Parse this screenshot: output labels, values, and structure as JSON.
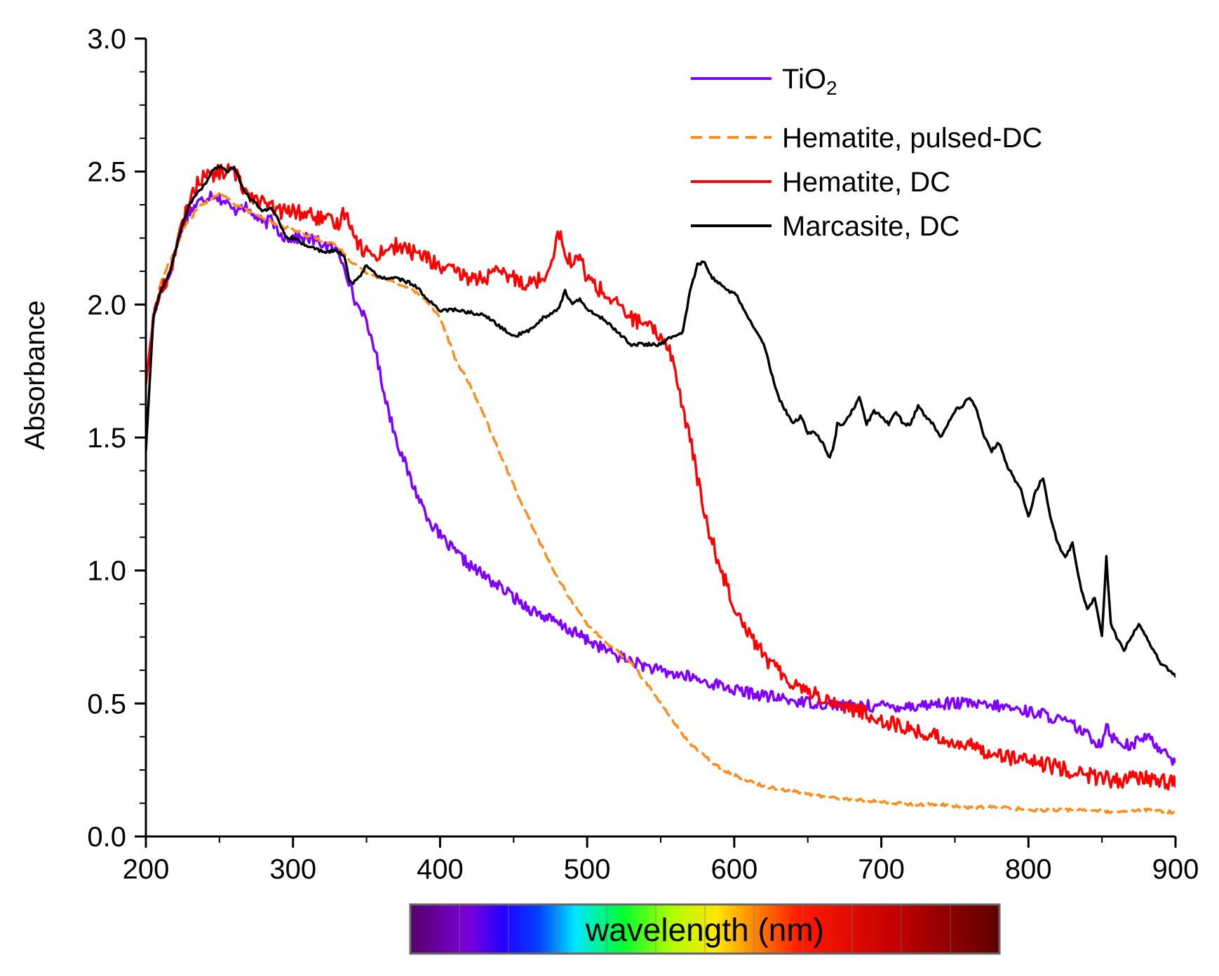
{
  "chart_data": {
    "type": "line",
    "title": "",
    "xlabel": "wavelength (nm)",
    "ylabel": "Absorbance",
    "xlim": [
      200,
      900
    ],
    "ylim": [
      0.0,
      3.0
    ],
    "xticks": [
      "200",
      "300",
      "400",
      "500",
      "600",
      "700",
      "800",
      "900"
    ],
    "yticks": [
      "0.0",
      "0.5",
      "1.0",
      "1.5",
      "2.0",
      "2.5",
      "3.0"
    ],
    "grid": false,
    "legend_position": "top-right",
    "series": [
      {
        "name": "TiO",
        "name_sub": "2",
        "color": "#8000ff",
        "dash": "solid",
        "x": [
          200,
          205,
          210,
          215,
          220,
          225,
          230,
          235,
          240,
          245,
          250,
          255,
          260,
          265,
          270,
          275,
          280,
          285,
          290,
          295,
          300,
          310,
          320,
          330,
          335,
          340,
          343,
          347,
          350,
          355,
          360,
          365,
          370,
          375,
          380,
          385,
          390,
          395,
          400,
          410,
          420,
          430,
          440,
          450,
          460,
          470,
          480,
          490,
          500,
          510,
          520,
          530,
          540,
          550,
          560,
          570,
          580,
          590,
          600,
          620,
          640,
          660,
          680,
          700,
          720,
          740,
          760,
          770,
          780,
          790,
          800,
          810,
          820,
          830,
          835,
          840,
          845,
          850,
          853,
          856,
          860,
          865,
          870,
          875,
          880,
          885,
          890,
          895,
          900
        ],
        "y": [
          1.7,
          1.95,
          2.05,
          2.1,
          2.2,
          2.3,
          2.35,
          2.38,
          2.4,
          2.42,
          2.4,
          2.38,
          2.35,
          2.38,
          2.35,
          2.33,
          2.3,
          2.32,
          2.28,
          2.25,
          2.25,
          2.25,
          2.23,
          2.2,
          2.15,
          2.05,
          2.0,
          1.98,
          1.92,
          1.85,
          1.72,
          1.6,
          1.5,
          1.42,
          1.34,
          1.28,
          1.22,
          1.17,
          1.13,
          1.07,
          1.02,
          0.98,
          0.94,
          0.9,
          0.86,
          0.83,
          0.8,
          0.77,
          0.74,
          0.71,
          0.68,
          0.66,
          0.64,
          0.62,
          0.61,
          0.6,
          0.58,
          0.57,
          0.55,
          0.53,
          0.51,
          0.5,
          0.49,
          0.49,
          0.49,
          0.5,
          0.5,
          0.49,
          0.49,
          0.48,
          0.47,
          0.46,
          0.44,
          0.42,
          0.4,
          0.38,
          0.36,
          0.35,
          0.43,
          0.38,
          0.36,
          0.35,
          0.34,
          0.36,
          0.38,
          0.35,
          0.33,
          0.32,
          0.27
        ]
      },
      {
        "name": "Hematite, pulsed-DC",
        "name_sub": "",
        "color": "#ff8c1a",
        "dash": "dashed",
        "x": [
          200,
          205,
          210,
          215,
          220,
          225,
          230,
          235,
          240,
          245,
          250,
          255,
          260,
          270,
          280,
          290,
          300,
          310,
          320,
          330,
          340,
          350,
          360,
          370,
          380,
          390,
          400,
          405,
          410,
          420,
          430,
          440,
          450,
          460,
          470,
          480,
          490,
          500,
          510,
          520,
          530,
          540,
          550,
          560,
          570,
          580,
          590,
          600,
          610,
          620,
          640,
          660,
          680,
          700,
          720,
          740,
          760,
          780,
          800,
          820,
          840,
          860,
          880,
          900
        ],
        "y": [
          1.7,
          1.95,
          2.08,
          2.15,
          2.2,
          2.28,
          2.32,
          2.36,
          2.38,
          2.4,
          2.42,
          2.4,
          2.38,
          2.35,
          2.32,
          2.3,
          2.28,
          2.26,
          2.24,
          2.22,
          2.16,
          2.12,
          2.1,
          2.08,
          2.06,
          2.02,
          1.95,
          1.88,
          1.8,
          1.7,
          1.58,
          1.45,
          1.32,
          1.2,
          1.08,
          0.97,
          0.88,
          0.8,
          0.74,
          0.7,
          0.65,
          0.58,
          0.5,
          0.42,
          0.35,
          0.3,
          0.26,
          0.23,
          0.21,
          0.19,
          0.17,
          0.15,
          0.14,
          0.13,
          0.12,
          0.12,
          0.11,
          0.11,
          0.1,
          0.1,
          0.1,
          0.09,
          0.1,
          0.09
        ]
      },
      {
        "name": "Hematite, DC",
        "name_sub": "",
        "color": "#ff0000",
        "dash": "solid",
        "x": [
          200,
          205,
          210,
          215,
          220,
          225,
          230,
          235,
          240,
          245,
          250,
          255,
          260,
          265,
          270,
          275,
          280,
          290,
          300,
          310,
          320,
          330,
          335,
          340,
          345,
          350,
          355,
          360,
          370,
          380,
          390,
          400,
          410,
          420,
          430,
          440,
          450,
          460,
          470,
          475,
          480,
          485,
          490,
          495,
          500,
          510,
          520,
          530,
          540,
          550,
          555,
          560,
          565,
          570,
          575,
          580,
          590,
          600,
          610,
          620,
          630,
          640,
          650,
          660,
          670,
          680,
          690,
          700,
          720,
          740,
          760,
          780,
          800,
          820,
          840,
          860,
          880,
          900
        ],
        "y": [
          1.7,
          1.95,
          2.05,
          2.1,
          2.2,
          2.3,
          2.4,
          2.45,
          2.5,
          2.48,
          2.5,
          2.5,
          2.5,
          2.45,
          2.42,
          2.4,
          2.38,
          2.35,
          2.35,
          2.34,
          2.32,
          2.3,
          2.35,
          2.3,
          2.22,
          2.2,
          2.18,
          2.2,
          2.22,
          2.2,
          2.18,
          2.14,
          2.12,
          2.1,
          2.1,
          2.12,
          2.1,
          2.08,
          2.1,
          2.15,
          2.28,
          2.2,
          2.15,
          2.18,
          2.1,
          2.05,
          2.0,
          1.95,
          1.92,
          1.88,
          1.85,
          1.75,
          1.6,
          1.5,
          1.35,
          1.2,
          1.02,
          0.87,
          0.77,
          0.68,
          0.62,
          0.58,
          0.55,
          0.52,
          0.5,
          0.48,
          0.46,
          0.44,
          0.4,
          0.37,
          0.34,
          0.31,
          0.28,
          0.26,
          0.23,
          0.21,
          0.22,
          0.2
        ]
      },
      {
        "name": "Marcasite, DC",
        "name_sub": "",
        "color": "#000000",
        "dash": "solid",
        "x": [
          200,
          205,
          210,
          215,
          220,
          225,
          230,
          235,
          240,
          245,
          250,
          255,
          260,
          265,
          270,
          275,
          280,
          285,
          290,
          295,
          300,
          310,
          320,
          330,
          335,
          338,
          340,
          345,
          350,
          355,
          360,
          370,
          380,
          385,
          390,
          395,
          400,
          410,
          420,
          430,
          440,
          450,
          460,
          470,
          480,
          485,
          490,
          495,
          500,
          510,
          520,
          530,
          540,
          550,
          555,
          560,
          565,
          570,
          575,
          580,
          585,
          590,
          595,
          600,
          610,
          620,
          625,
          630,
          635,
          640,
          645,
          650,
          655,
          660,
          665,
          668,
          670,
          675,
          680,
          685,
          690,
          695,
          700,
          705,
          710,
          715,
          720,
          725,
          730,
          735,
          740,
          745,
          750,
          755,
          760,
          765,
          770,
          775,
          780,
          785,
          790,
          795,
          800,
          805,
          810,
          815,
          820,
          825,
          830,
          835,
          840,
          845,
          850,
          853,
          856,
          860,
          865,
          870,
          875,
          880,
          885,
          890,
          895,
          900
        ],
        "y": [
          1.45,
          1.95,
          2.05,
          2.1,
          2.2,
          2.3,
          2.38,
          2.42,
          2.45,
          2.5,
          2.52,
          2.5,
          2.52,
          2.45,
          2.4,
          2.38,
          2.35,
          2.36,
          2.32,
          2.25,
          2.25,
          2.22,
          2.2,
          2.2,
          2.18,
          2.1,
          2.08,
          2.1,
          2.15,
          2.12,
          2.1,
          2.1,
          2.08,
          2.06,
          2.03,
          2.0,
          1.98,
          1.98,
          1.97,
          1.96,
          1.92,
          1.88,
          1.9,
          1.95,
          1.98,
          2.05,
          2.0,
          2.02,
          1.98,
          1.95,
          1.9,
          1.85,
          1.85,
          1.85,
          1.87,
          1.88,
          1.9,
          2.05,
          2.15,
          2.16,
          2.1,
          2.08,
          2.05,
          2.05,
          1.95,
          1.85,
          1.75,
          1.65,
          1.6,
          1.55,
          1.58,
          1.52,
          1.52,
          1.48,
          1.42,
          1.48,
          1.55,
          1.55,
          1.6,
          1.65,
          1.55,
          1.6,
          1.58,
          1.55,
          1.6,
          1.55,
          1.55,
          1.62,
          1.58,
          1.55,
          1.5,
          1.55,
          1.6,
          1.62,
          1.65,
          1.6,
          1.5,
          1.45,
          1.48,
          1.4,
          1.35,
          1.3,
          1.2,
          1.3,
          1.35,
          1.2,
          1.1,
          1.05,
          1.1,
          0.95,
          0.85,
          0.9,
          0.75,
          1.05,
          0.8,
          0.75,
          0.7,
          0.75,
          0.8,
          0.75,
          0.7,
          0.65,
          0.63,
          0.6
        ]
      }
    ],
    "colorbar_label": "wavelength (nm)"
  }
}
